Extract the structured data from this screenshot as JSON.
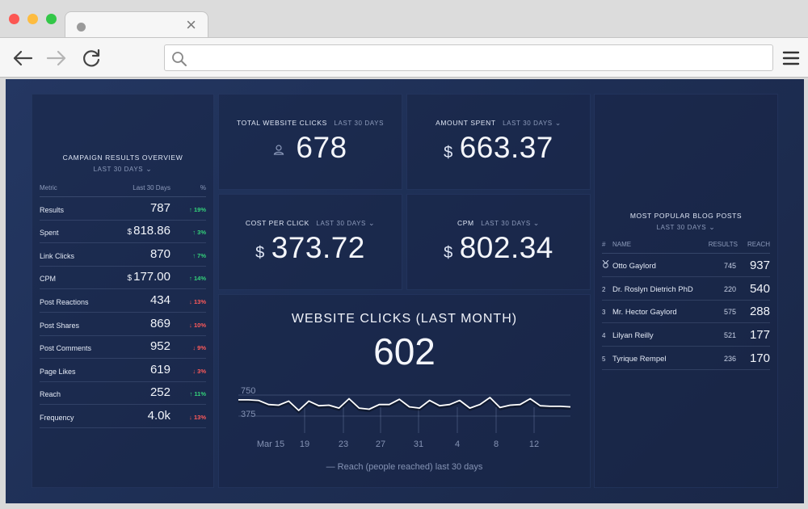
{
  "browser": {
    "icons": {
      "back": "arrow-left-icon",
      "forward": "arrow-right-icon",
      "reload": "reload-icon",
      "search": "search-icon",
      "menu": "hamburger-menu-icon",
      "close_tab": "close-icon"
    },
    "tab_close": "×",
    "url": ""
  },
  "campaign": {
    "title": "CAMPAIGN RESULTS OVERVIEW",
    "period": "LAST 30 DAYS",
    "columns": {
      "metric": "Metric",
      "value": "Last 30 Days",
      "pct": "%"
    },
    "rows": [
      {
        "metric": "Results",
        "currency": "",
        "value": "787",
        "pct": "↑ 19%",
        "trend": "up"
      },
      {
        "metric": "Spent",
        "currency": "$",
        "value": "818.86",
        "pct": "↑ 3%",
        "trend": "up"
      },
      {
        "metric": "Link Clicks",
        "currency": "",
        "value": "870",
        "pct": "↑ 7%",
        "trend": "up"
      },
      {
        "metric": "CPM",
        "currency": "$",
        "value": "177.00",
        "pct": "↑ 14%",
        "trend": "up"
      },
      {
        "metric": "Post Reactions",
        "currency": "",
        "value": "434",
        "pct": "↓ 13%",
        "trend": "down"
      },
      {
        "metric": "Post Shares",
        "currency": "",
        "value": "869",
        "pct": "↓ 10%",
        "trend": "down"
      },
      {
        "metric": "Post Comments",
        "currency": "",
        "value": "952",
        "pct": "↓ 9%",
        "trend": "down"
      },
      {
        "metric": "Page Likes",
        "currency": "",
        "value": "619",
        "pct": "↓ 3%",
        "trend": "down"
      },
      {
        "metric": "Reach",
        "currency": "",
        "value": "252",
        "pct": "↑ 11%",
        "trend": "up"
      },
      {
        "metric": "Frequency",
        "currency": "",
        "value": "4.0k",
        "pct": "↓ 13%",
        "trend": "down"
      }
    ]
  },
  "kpis": {
    "clicks": {
      "title": "TOTAL WEBSITE CLICKS",
      "period": "LAST 30 DAYS",
      "value": "678",
      "icon": "user-icon"
    },
    "spent": {
      "title": "AMOUNT SPENT",
      "period": "LAST 30 DAYS",
      "symbol": "$",
      "value": "663.37"
    },
    "cpc": {
      "title": "COST PER CLICK",
      "period": "LAST 30 DAYS",
      "symbol": "$",
      "value": "373.72"
    },
    "cpm": {
      "title": "CPM",
      "period": "LAST 30 DAYS",
      "symbol": "$",
      "value": "802.34"
    }
  },
  "chart": {
    "title": "WEBSITE CLICKS (LAST MONTH)",
    "total": "602",
    "legend": "Reach (people reached) last 30 days"
  },
  "chart_data": {
    "type": "line",
    "title": "WEBSITE CLICKS (LAST MONTH)",
    "xlabel": "",
    "ylabel": "",
    "x_ticks": [
      "Mar 15",
      "19",
      "23",
      "27",
      "31",
      "4",
      "8",
      "12"
    ],
    "y_ticks": [
      750,
      375
    ],
    "grid": true,
    "series": [
      {
        "name": "Reach (people reached) last 30 days",
        "values": [
          700,
          700,
          690,
          620,
          610,
          680,
          520,
          680,
          600,
          610,
          560,
          720,
          560,
          540,
          620,
          620,
          710,
          580,
          560,
          690,
          600,
          620,
          690,
          560,
          620,
          740,
          570,
          610,
          620,
          720,
          600,
          590,
          590,
          580
        ]
      }
    ]
  },
  "blog": {
    "title": "MOST POPULAR BLOG POSTS",
    "period": "LAST 30 DAYS",
    "columns": {
      "rank": "#",
      "name": "NAME",
      "results": "RESULTS",
      "reach": "REACH"
    },
    "rows": [
      {
        "rank": "",
        "rank_icon": "medal-icon",
        "name": "Otto Gaylord",
        "results": "745",
        "reach": "937"
      },
      {
        "rank": "2",
        "name": "Dr. Roslyn Dietrich PhD",
        "results": "220",
        "reach": "540"
      },
      {
        "rank": "3",
        "name": "Mr. Hector Gaylord",
        "results": "575",
        "reach": "288"
      },
      {
        "rank": "4",
        "name": "Lilyan Reilly",
        "results": "521",
        "reach": "177"
      },
      {
        "rank": "5",
        "name": "Tyrique Rempel",
        "results": "236",
        "reach": "170"
      }
    ]
  },
  "colors": {
    "up": "#33d17a",
    "down": "#ff5a5a",
    "line": "#ffffff"
  }
}
